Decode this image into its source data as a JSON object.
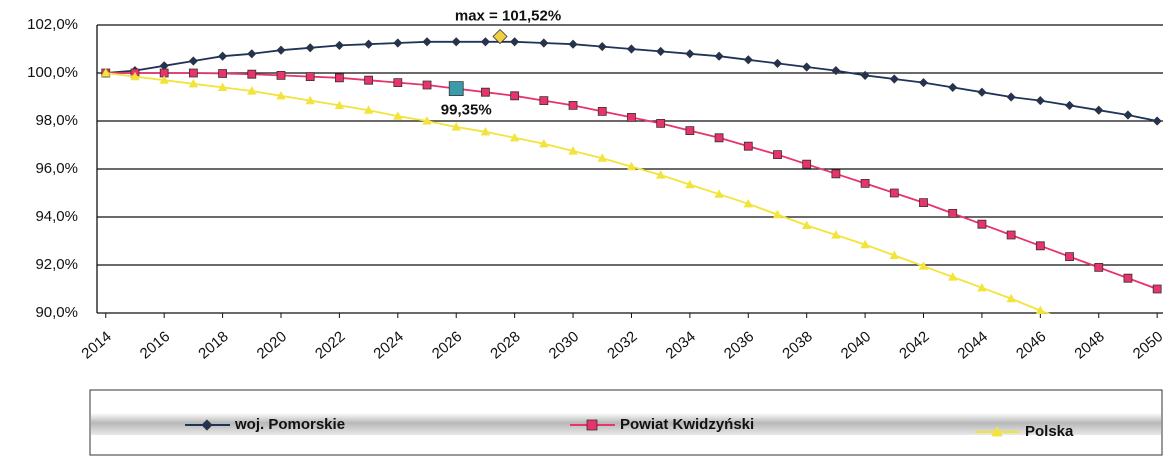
{
  "chart_data": {
    "type": "line",
    "x": [
      2014,
      2015,
      2016,
      2017,
      2018,
      2019,
      2020,
      2021,
      2022,
      2023,
      2024,
      2025,
      2026,
      2027,
      2028,
      2029,
      2030,
      2031,
      2032,
      2033,
      2034,
      2035,
      2036,
      2037,
      2038,
      2039,
      2040,
      2041,
      2042,
      2043,
      2044,
      2045,
      2046,
      2047,
      2048,
      2049,
      2050
    ],
    "series": [
      {
        "name": "woj. Pomorskie",
        "color": "#1f3458",
        "marker": "diamond",
        "values": [
          100.0,
          100.1,
          100.3,
          100.5,
          100.7,
          100.8,
          100.95,
          101.05,
          101.15,
          101.2,
          101.25,
          101.3,
          101.3,
          101.3,
          101.3,
          101.25,
          101.2,
          101.1,
          101.0,
          100.9,
          100.8,
          100.7,
          100.55,
          100.4,
          100.25,
          100.1,
          99.9,
          99.75,
          99.6,
          99.4,
          99.2,
          99.0,
          98.85,
          98.65,
          98.45,
          98.25,
          98.0
        ]
      },
      {
        "name": "Powiat Kwidzyński",
        "color": "#e8336b",
        "marker": "square",
        "values": [
          100.0,
          100.0,
          100.0,
          100.0,
          99.98,
          99.95,
          99.9,
          99.85,
          99.8,
          99.7,
          99.6,
          99.5,
          99.35,
          99.2,
          99.05,
          98.85,
          98.65,
          98.4,
          98.15,
          97.9,
          97.6,
          97.3,
          96.95,
          96.6,
          96.2,
          95.8,
          95.4,
          95.0,
          94.6,
          94.15,
          93.7,
          93.25,
          92.8,
          92.35,
          91.9,
          91.45,
          91.0
        ]
      },
      {
        "name": "Polska",
        "color": "#f2e43a",
        "marker": "triangle",
        "values": [
          100.0,
          99.85,
          99.7,
          99.55,
          99.4,
          99.25,
          99.05,
          98.85,
          98.65,
          98.45,
          98.2,
          98.0,
          97.75,
          97.55,
          97.3,
          97.05,
          96.75,
          96.45,
          96.1,
          95.75,
          95.35,
          94.95,
          94.55,
          94.1,
          93.65,
          93.25,
          92.85,
          92.4,
          91.95,
          91.5,
          91.05,
          90.6,
          90.1,
          89.65,
          null,
          null,
          null
        ]
      }
    ],
    "annotations": [
      {
        "text": "max = 101,52%",
        "x": 2027.5,
        "y": 101.52,
        "marker": "diamond",
        "color": "#f0d040"
      },
      {
        "text": "99,35%",
        "x": 2026,
        "y": 99.35,
        "marker": "square",
        "color": "#3a9ca8"
      }
    ],
    "xlim": [
      2013.7,
      2050.2
    ],
    "xticks": [
      2014,
      2016,
      2018,
      2020,
      2022,
      2024,
      2026,
      2028,
      2030,
      2032,
      2034,
      2036,
      2038,
      2040,
      2042,
      2044,
      2046,
      2048,
      2050
    ],
    "ylim": [
      90,
      102
    ],
    "yticks": [
      {
        "value": 90,
        "label": "90,0%"
      },
      {
        "value": 92,
        "label": "92,0%"
      },
      {
        "value": 94,
        "label": "94,0%"
      },
      {
        "value": 96,
        "label": "96,0%"
      },
      {
        "value": 98,
        "label": "98,0%"
      },
      {
        "value": 100,
        "label": "100,0%"
      },
      {
        "value": 102,
        "label": "102,0%"
      }
    ],
    "grid": true
  }
}
